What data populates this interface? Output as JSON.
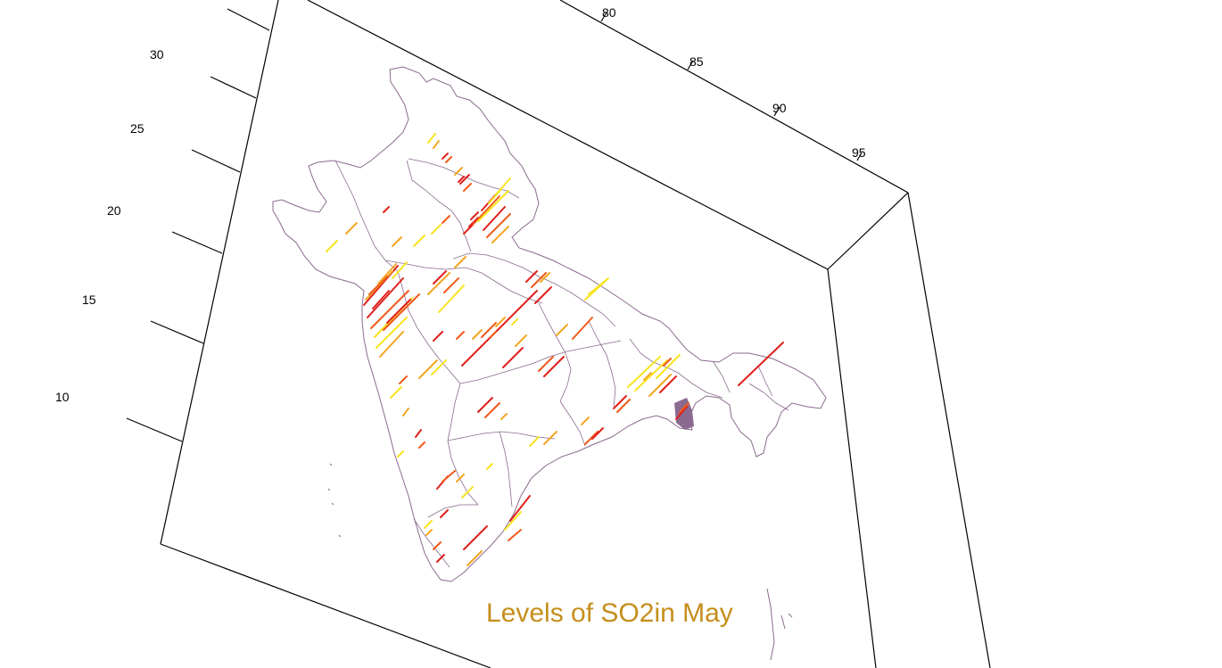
{
  "title": "Levels of SO2in May",
  "colors": {
    "title": "#c58e1c",
    "border": "#8a6a8e",
    "frame": "#000000",
    "levels": [
      "#e0201c",
      "#ef5a1a",
      "#f5a623",
      "#f7e41f"
    ]
  },
  "lon_ticks": [
    "80",
    "85",
    "90",
    "95"
  ],
  "lat_ticks": [
    "30",
    "25",
    "20",
    "15",
    "10"
  ],
  "chart_data": {
    "type": "map",
    "title": "Levels of SO2in May",
    "x_axis_ticks": [
      80,
      85,
      90,
      95
    ],
    "y_axis_ticks": [
      30,
      25,
      20,
      15,
      10
    ],
    "color_scale": [
      "#e0201c",
      "#ef5a1a",
      "#f5a623",
      "#f7e41f"
    ]
  }
}
